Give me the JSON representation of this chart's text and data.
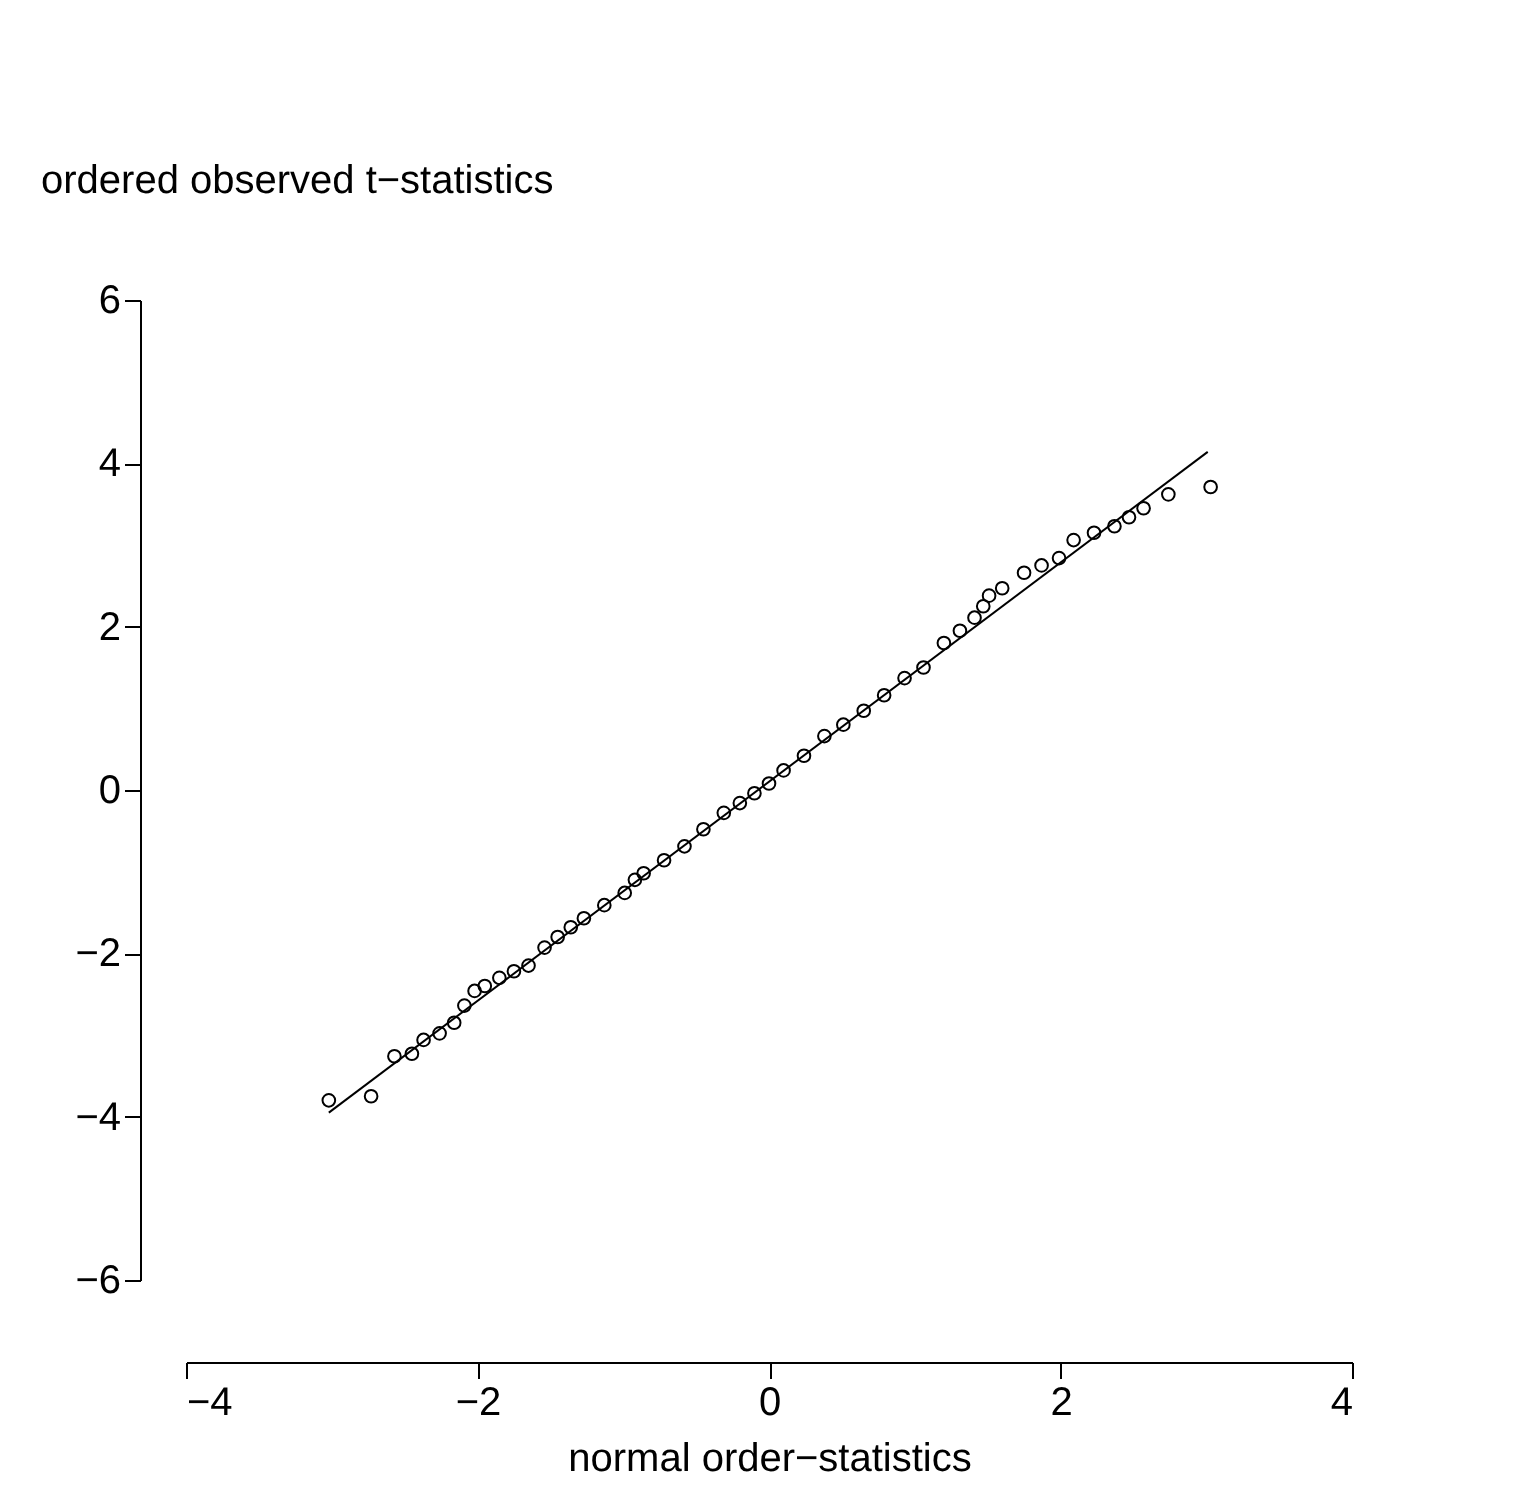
{
  "chart_data": {
    "type": "scatter",
    "xlabel": "normal order−statistics",
    "ylabel": "ordered observed t−statistics",
    "xlim": [
      -4,
      4
    ],
    "xticks": [
      -4,
      -2,
      0,
      2,
      4
    ],
    "ylim": [
      -6,
      6
    ],
    "yticks": [
      -6,
      -4,
      -2,
      0,
      2,
      4,
      6
    ],
    "grid": false,
    "series": [
      {
        "marker": "circle",
        "color": "#000000",
        "x": [
          -3.02,
          -2.73,
          -2.57,
          -2.45,
          -2.37,
          -2.26,
          -2.16,
          -2.09,
          -2.02,
          -1.95,
          -1.85,
          -1.75,
          -1.65,
          -1.54,
          -1.45,
          -1.36,
          -1.27,
          -1.13,
          -0.99,
          -0.92,
          -0.86,
          -0.72,
          -0.58,
          -0.45,
          -0.31,
          -0.2,
          -0.1,
          0.0,
          0.1,
          0.24,
          0.38,
          0.51,
          0.65,
          0.79,
          0.93,
          1.06,
          1.2,
          1.31,
          1.41,
          1.47,
          1.51,
          1.6,
          1.75,
          1.87,
          1.99,
          2.09,
          2.23,
          2.37,
          2.47,
          2.57,
          2.74,
          3.03
        ],
        "values": [
          -3.8,
          -3.75,
          -3.26,
          -3.23,
          -3.06,
          -2.98,
          -2.85,
          -2.64,
          -2.46,
          -2.4,
          -2.3,
          -2.22,
          -2.15,
          -1.93,
          -1.8,
          -1.68,
          -1.57,
          -1.41,
          -1.26,
          -1.1,
          -1.02,
          -0.86,
          -0.69,
          -0.48,
          -0.28,
          -0.16,
          -0.04,
          0.08,
          0.24,
          0.42,
          0.66,
          0.8,
          0.97,
          1.16,
          1.37,
          1.5,
          1.8,
          1.95,
          2.11,
          2.25,
          2.38,
          2.47,
          2.66,
          2.75,
          2.84,
          3.06,
          3.15,
          3.23,
          3.34,
          3.45,
          3.62,
          3.71
        ]
      },
      {
        "type": "line",
        "color": "#000000",
        "x": [
          -3.02,
          3.01
        ],
        "values": [
          -3.95,
          4.14
        ]
      }
    ]
  }
}
